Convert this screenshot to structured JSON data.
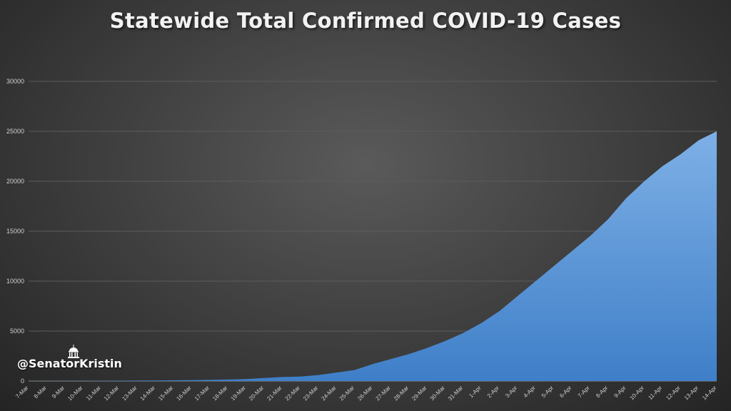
{
  "chart_data": {
    "type": "area",
    "title": "Statewide Total Confirmed COVID-19 Cases",
    "xlabel": "",
    "ylabel": "",
    "ylim": [
      0,
      30000
    ],
    "yticks": [
      0,
      5000,
      10000,
      15000,
      20000,
      25000,
      30000
    ],
    "grid": true,
    "categories": [
      "7-Mar",
      "8-Mar",
      "9-Mar",
      "10-Mar",
      "11-Mar",
      "12-Mar",
      "13-Mar",
      "14-Mar",
      "15-Mar",
      "16-Mar",
      "17-Mar",
      "18-Mar",
      "19-Mar",
      "20-Mar",
      "21-Mar",
      "22-Mar",
      "23-Mar",
      "24-Mar",
      "25-Mar",
      "26-Mar",
      "27-Mar",
      "28-Mar",
      "29-Mar",
      "30-Mar",
      "31-Mar",
      "1-Apr",
      "2-Apr",
      "3-Apr",
      "4-Apr",
      "5-Apr",
      "6-Apr",
      "7-Apr",
      "8-Apr",
      "9-Apr",
      "10-Apr",
      "11-Apr",
      "12-Apr",
      "13-Apr",
      "14-Apr"
    ],
    "series": [
      {
        "values": [
          5,
          8,
          12,
          17,
          25,
          35,
          45,
          55,
          70,
          90,
          120,
          150,
          200,
          300,
          400,
          450,
          600,
          850,
          1100,
          1700,
          2200,
          2700,
          3300,
          4000,
          4800,
          5800,
          7000,
          8500,
          10000,
          11500,
          13000,
          14500,
          16200,
          18300,
          20000,
          21500,
          22700,
          24100,
          25000
        ],
        "color": "#5b9bd5"
      }
    ]
  },
  "watermark": {
    "text": "@SenatorKristin",
    "icon": "capitol-building-icon"
  }
}
